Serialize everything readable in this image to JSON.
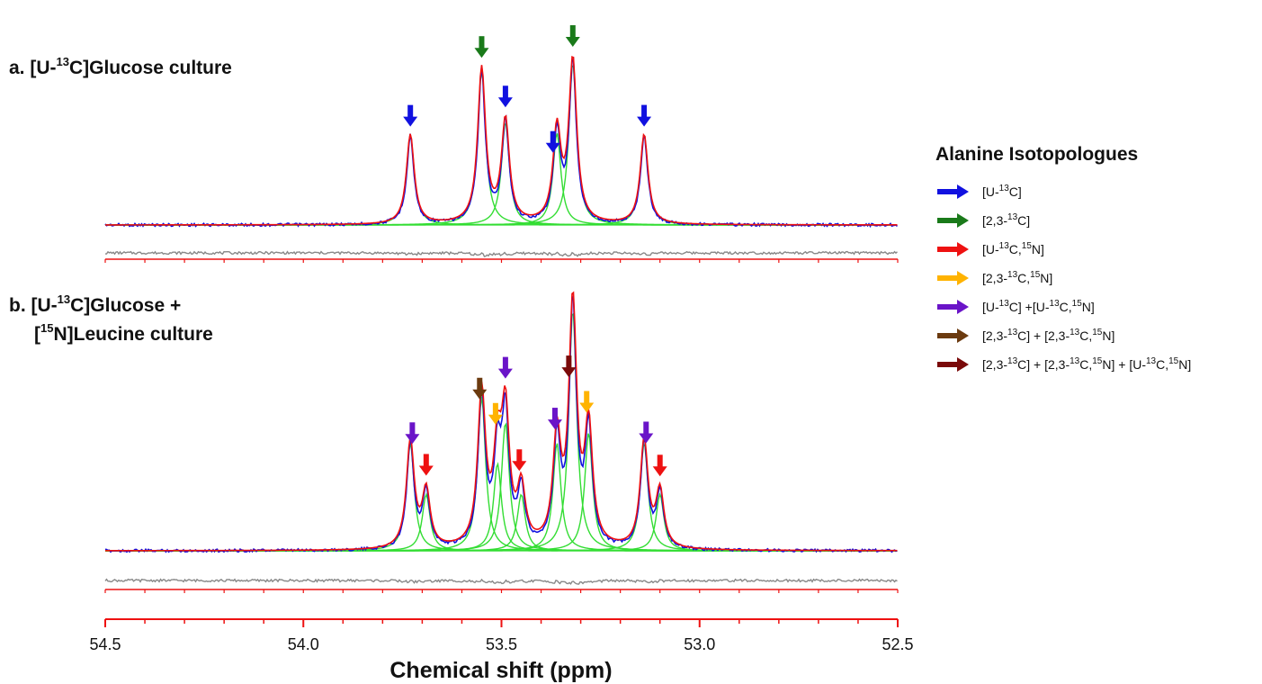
{
  "chart_data": {
    "type": "line",
    "x_axis": {
      "label": "Chemical shift (ppm)",
      "range": [
        54.5,
        52.5
      ],
      "reversed": true,
      "ticks": [
        "54.5",
        "54.0",
        "53.5",
        "53.0",
        "52.5"
      ]
    },
    "panels": [
      {
        "title": "a. [U-13C]Glucose culture",
        "title_parts": {
          "prefix": "a. [U-",
          "sup": "13",
          "suffix": "C]Glucose culture"
        },
        "series": [
          "observed spectrum",
          "fitted sum",
          "component peaks",
          "residual"
        ],
        "peaks": [
          {
            "ppm": 53.73,
            "height": 0.5,
            "label": "[U-13C]"
          },
          {
            "ppm": 53.55,
            "height": 0.86,
            "label": "[2,3-13C]"
          },
          {
            "ppm": 53.49,
            "height": 0.57,
            "label": "[U-13C]"
          },
          {
            "ppm": 53.36,
            "height": 0.51,
            "label": "[U-13C]"
          },
          {
            "ppm": 53.32,
            "height": 0.9,
            "label": "[2,3-13C]"
          },
          {
            "ppm": 53.14,
            "height": 0.5,
            "label": "[U-13C]"
          }
        ],
        "arrows": [
          {
            "ppm": 53.73,
            "label": "[U-13C]"
          },
          {
            "ppm": 53.55,
            "label": "[2,3-13C]"
          },
          {
            "ppm": 53.49,
            "label": "[U-13C]"
          },
          {
            "ppm": 53.37,
            "label": "[U-13C]"
          },
          {
            "ppm": 53.32,
            "label": "[2,3-13C]"
          },
          {
            "ppm": 53.14,
            "label": "[U-13C]"
          }
        ]
      },
      {
        "title_line1": "b. [U-13C]Glucose +",
        "title_line2": "[15N]Leucine culture",
        "title_parts": {
          "l1_prefix": "b. [U-",
          "l1_sup": "13",
          "l1_suffix": "C]Glucose +",
          "l2_prefix": "[",
          "l2_sup": "15",
          "l2_suffix": "N]Leucine culture"
        },
        "series": [
          "observed spectrum",
          "fitted sum",
          "component peaks",
          "residual"
        ],
        "peaks": [
          {
            "ppm": 53.73,
            "height": 0.42
          },
          {
            "ppm": 53.69,
            "height": 0.22
          },
          {
            "ppm": 53.55,
            "height": 0.6
          },
          {
            "ppm": 53.51,
            "height": 0.34
          },
          {
            "ppm": 53.49,
            "height": 0.5
          },
          {
            "ppm": 53.45,
            "height": 0.22
          },
          {
            "ppm": 53.36,
            "height": 0.42
          },
          {
            "ppm": 53.32,
            "height": 0.94
          },
          {
            "ppm": 53.28,
            "height": 0.46
          },
          {
            "ppm": 53.14,
            "height": 0.42
          },
          {
            "ppm": 53.1,
            "height": 0.22
          }
        ],
        "arrows": [
          {
            "ppm": 53.725,
            "label": "[U-13C] +[U-13C,15N]",
            "level": "high"
          },
          {
            "ppm": 53.69,
            "label": "[U-13C,15N]",
            "level": "low"
          },
          {
            "ppm": 53.555,
            "label": "[2,3-13C] + [2,3-13C,15N]",
            "level": "high"
          },
          {
            "ppm": 53.515,
            "label": "[2,3-13C,15N]",
            "level": "mid"
          },
          {
            "ppm": 53.49,
            "label": "[U-13C] +[U-13C,15N]",
            "level": "high"
          },
          {
            "ppm": 53.455,
            "label": "[U-13C,15N]",
            "level": "low"
          },
          {
            "ppm": 53.365,
            "label": "[U-13C] +[U-13C,15N]",
            "level": "high"
          },
          {
            "ppm": 53.33,
            "label": "[2,3-13C] + [2,3-13C,15N] + [U-13C,15N]",
            "level": "top"
          },
          {
            "ppm": 53.285,
            "label": "[2,3-13C,15N]",
            "level": "mid"
          },
          {
            "ppm": 53.135,
            "label": "[U-13C] +[U-13C,15N]",
            "level": "high"
          },
          {
            "ppm": 53.1,
            "label": "[U-13C,15N]",
            "level": "low"
          }
        ]
      }
    ],
    "legend": {
      "title": "Alanine Isotopologues",
      "placement": "right",
      "entries": [
        {
          "label": "[U-13C]",
          "color": "#1111e0",
          "parts": [
            [
              "[U-",
              ""
            ],
            [
              "13",
              "sup"
            ],
            [
              "C]",
              ""
            ]
          ]
        },
        {
          "label": "[2,3-13C]",
          "color": "#1a7a1a",
          "parts": [
            [
              "[2,3-",
              ""
            ],
            [
              "13",
              "sup"
            ],
            [
              "C]",
              ""
            ]
          ]
        },
        {
          "label": "[U-13C,15N]",
          "color": "#ee1111",
          "parts": [
            [
              "[U-",
              ""
            ],
            [
              "13",
              "sup"
            ],
            [
              "C,",
              ""
            ],
            [
              "15",
              "sup"
            ],
            [
              "N]",
              ""
            ]
          ]
        },
        {
          "label": "[2,3-13C,15N]",
          "color": "#ffb300",
          "parts": [
            [
              "[2,3-",
              ""
            ],
            [
              "13",
              "sup"
            ],
            [
              "C,",
              ""
            ],
            [
              "15",
              "sup"
            ],
            [
              "N]",
              ""
            ]
          ]
        },
        {
          "label": "[U-13C] +[U-13C,15N]",
          "color": "#6a14c8",
          "parts": [
            [
              "[U-",
              ""
            ],
            [
              "13",
              "sup"
            ],
            [
              "C] +[U-",
              ""
            ],
            [
              "13",
              "sup"
            ],
            [
              "C,",
              ""
            ],
            [
              "15",
              "sup"
            ],
            [
              "N]",
              ""
            ]
          ]
        },
        {
          "label": "[2,3-13C] + [2,3-13C,15N]",
          "color": "#6b3a0f",
          "parts": [
            [
              "[2,3-",
              ""
            ],
            [
              "13",
              "sup"
            ],
            [
              "C] + [2,3-",
              ""
            ],
            [
              "13",
              "sup"
            ],
            [
              "C,",
              ""
            ],
            [
              "15",
              "sup"
            ],
            [
              "N]",
              ""
            ]
          ]
        },
        {
          "label": "[2,3-13C] + [2,3-13C,15N] + [U-13C,15N]",
          "color": "#7a0a0a",
          "parts": [
            [
              "[2,3-",
              ""
            ],
            [
              "13",
              "sup"
            ],
            [
              "C] + [2,3-",
              ""
            ],
            [
              "13",
              "sup"
            ],
            [
              "C,",
              ""
            ],
            [
              "15",
              "sup"
            ],
            [
              "N] + [U-",
              ""
            ],
            [
              "13",
              "sup"
            ],
            [
              "C,",
              ""
            ],
            [
              "15",
              "sup"
            ],
            [
              "N]",
              ""
            ]
          ]
        }
      ]
    },
    "colors": {
      "observed": "#1111e0",
      "fit": "#ee1111",
      "components": "#33dd33",
      "residual": "#888888",
      "axis": "#ee1111"
    }
  }
}
